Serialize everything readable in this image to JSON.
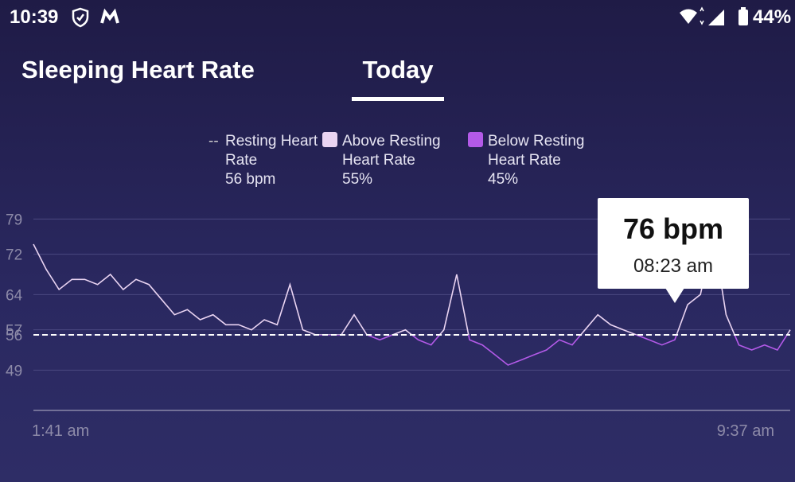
{
  "status_bar": {
    "time": "10:39",
    "battery": "44%"
  },
  "header": {
    "title": "Sleeping Heart Rate",
    "tab": "Today"
  },
  "chart_data": {
    "type": "line",
    "legend": [
      {
        "name": "Resting Heart Rate",
        "value": "56 bpm"
      },
      {
        "name": "Above Resting Heart Rate",
        "value": "55%",
        "color": "#ead4f2"
      },
      {
        "name": "Below Resting Heart Rate",
        "value": "45%",
        "color": "#b35ae8"
      }
    ],
    "resting": 56,
    "categories": [
      "1:41 am",
      null,
      null,
      null,
      null,
      null,
      null,
      null,
      null,
      null,
      null,
      null,
      null,
      null,
      null,
      null,
      null,
      null,
      null,
      null,
      null,
      null,
      null,
      null,
      null,
      null,
      null,
      null,
      null,
      null,
      null,
      null,
      null,
      null,
      null,
      null,
      null,
      null,
      null,
      null,
      null,
      null,
      null,
      null,
      null,
      null,
      null,
      null,
      null,
      null,
      null,
      null,
      null,
      null,
      null,
      null,
      null,
      null,
      null,
      "9:37 am"
    ],
    "values": [
      74,
      69,
      65,
      67,
      67,
      66,
      68,
      65,
      67,
      66,
      63,
      60,
      61,
      59,
      60,
      58,
      58,
      57,
      59,
      58,
      66,
      57,
      56,
      56,
      56,
      60,
      56,
      55,
      56,
      57,
      55,
      54,
      57,
      68,
      55,
      54,
      52,
      50,
      51,
      52,
      53,
      55,
      54,
      57,
      60,
      58,
      57,
      56,
      55,
      54,
      55,
      62,
      64,
      76,
      60,
      54,
      53,
      54,
      53,
      57
    ],
    "ylim": [
      41,
      83
    ],
    "yticks": [
      79,
      72,
      64,
      57,
      56,
      49
    ],
    "grid": true,
    "tooltip": {
      "value": "76 bpm",
      "time": "08:23 am"
    }
  }
}
